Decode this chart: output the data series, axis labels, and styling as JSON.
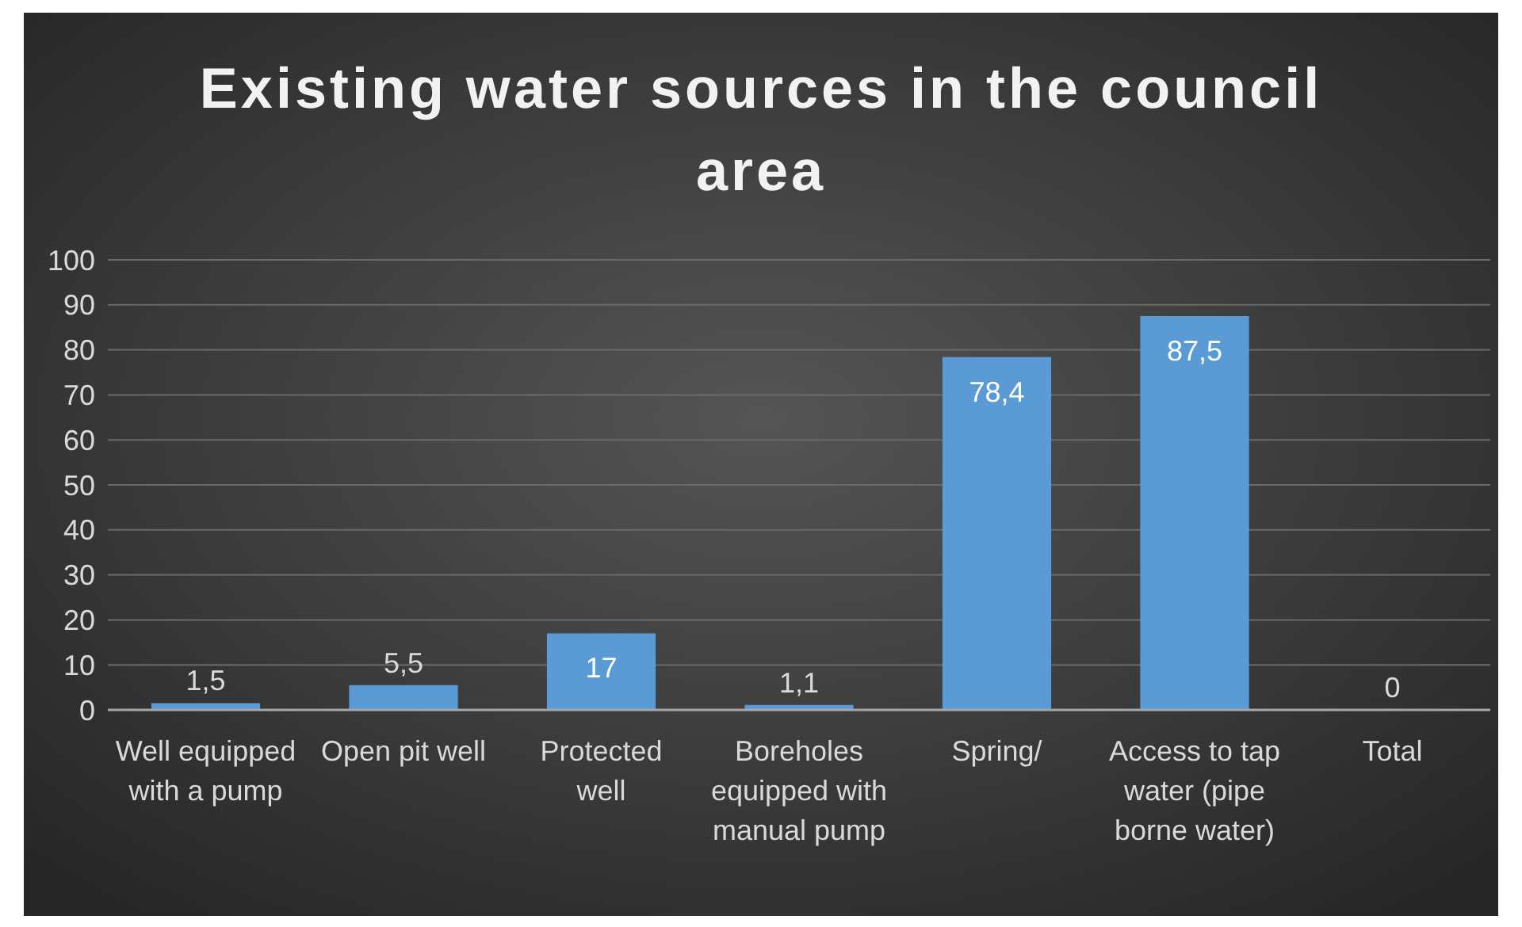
{
  "chart_data": {
    "type": "bar",
    "title": "Existing water sources in the council area",
    "categories": [
      "Well equipped with a pump",
      "Open pit well",
      "Protected well",
      "Boreholes equipped with manual pump",
      "Spring/",
      "Access to tap water (pipe borne water)",
      "Total"
    ],
    "values": [
      1.5,
      5.5,
      17,
      1.1,
      78.4,
      87.5,
      0
    ],
    "value_labels": [
      "1,5",
      "5,5",
      "17",
      "1,1",
      "78,4",
      "87,5",
      "0"
    ],
    "color": "#5b9bd5",
    "ylim": [
      0,
      100
    ],
    "yticks": [
      0,
      10,
      20,
      30,
      40,
      50,
      60,
      70,
      80,
      90,
      100
    ],
    "grid": "y"
  }
}
